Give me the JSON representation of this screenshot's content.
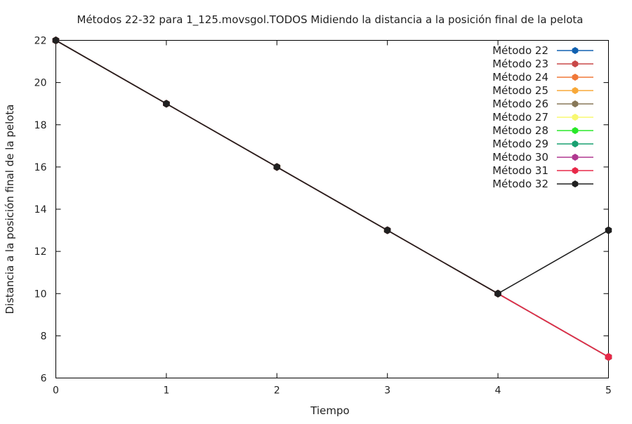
{
  "chart_data": {
    "type": "line",
    "title": "Métodos 22-32 para 1_125.movsgol.TODOS Midiendo la distancia a la posición final de la pelota",
    "xlabel": "Tiempo",
    "ylabel": "Distancia a la posición final de la pelota",
    "xlim": [
      0,
      5
    ],
    "ylim": [
      6,
      22
    ],
    "x_ticks": [
      "0",
      "1",
      "2",
      "3",
      "4",
      "5"
    ],
    "y_ticks": [
      "6",
      "8",
      "10",
      "12",
      "14",
      "16",
      "18",
      "20",
      "22"
    ],
    "x": [
      0,
      1,
      2,
      3,
      4,
      5
    ],
    "grid": false,
    "legend_position": "top-right",
    "series": [
      {
        "name": "Método 22",
        "color": "#1060b0",
        "values": [
          22,
          19,
          16,
          13,
          10,
          7
        ]
      },
      {
        "name": "Método 23",
        "color": "#c84848",
        "values": [
          22,
          19,
          16,
          13,
          10,
          7
        ]
      },
      {
        "name": "Método 24",
        "color": "#f07838",
        "values": [
          22,
          19,
          16,
          13,
          10,
          7
        ]
      },
      {
        "name": "Método 25",
        "color": "#f8a838",
        "values": [
          22,
          19,
          16,
          13,
          10,
          7
        ]
      },
      {
        "name": "Método 26",
        "color": "#887858",
        "values": [
          22,
          19,
          16,
          13,
          10,
          7
        ]
      },
      {
        "name": "Método 27",
        "color": "#f8f870",
        "values": [
          22,
          19,
          16,
          13,
          10,
          7
        ]
      },
      {
        "name": "Método 28",
        "color": "#28e828",
        "values": [
          22,
          19,
          16,
          13,
          10,
          7
        ]
      },
      {
        "name": "Método 29",
        "color": "#18a070",
        "values": [
          22,
          19,
          16,
          13,
          10,
          7
        ]
      },
      {
        "name": "Método 30",
        "color": "#b03890",
        "values": [
          22,
          19,
          16,
          13,
          10,
          7
        ]
      },
      {
        "name": "Método 31",
        "color": "#e82848",
        "values": [
          22,
          19,
          16,
          13,
          10,
          7
        ]
      },
      {
        "name": "Método 32",
        "color": "#202020",
        "values": [
          22,
          19,
          16,
          13,
          10,
          13
        ]
      }
    ]
  }
}
